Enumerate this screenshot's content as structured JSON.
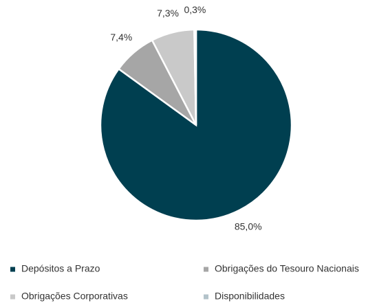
{
  "chart_data": {
    "type": "pie",
    "categories": [
      "Depósitos a Prazo",
      "Obrigações do Tesouro Nacionais",
      "Obrigações Corporativas",
      "Disponibilidades"
    ],
    "values": [
      85.0,
      7.4,
      7.3,
      0.3
    ],
    "value_labels": [
      "85,0%",
      "7,4%",
      "7,3%",
      "0,3%"
    ],
    "colors": [
      "#003f50",
      "#a6a6a6",
      "#c9c9c9",
      "#b3c3ca"
    ],
    "legend": "bottom"
  }
}
